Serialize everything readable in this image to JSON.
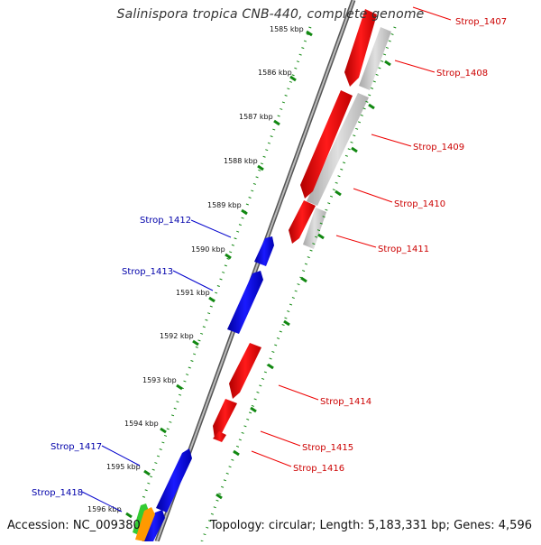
{
  "title": "Salinispora tropica CNB-440, complete genome",
  "footer": {
    "accession": "Accession: NC_009380",
    "topology": "Topology: circular; Length: 5,183,331 bp; Genes: 4,596"
  },
  "colors": {
    "forward": "#0000ee",
    "reverse": "#ff0000",
    "pseudo": "#c8c8c8",
    "ticks": "#118811",
    "backbone": "#777777",
    "green_feature": "#33cc33",
    "orange_feature": "#ff9900"
  },
  "kbp_ticks": [
    "1585 kbp",
    "1586 kbp",
    "1587 kbp",
    "1588 kbp",
    "1589 kbp",
    "1590 kbp",
    "1591 kbp",
    "1592 kbp",
    "1593 kbp",
    "1594 kbp",
    "1595 kbp",
    "1596 kbp"
  ],
  "genes_right": [
    "Strop_1407",
    "Strop_1408",
    "Strop_1409",
    "Strop_1410",
    "Strop_1411",
    "Strop_1414",
    "Strop_1415",
    "Strop_1416"
  ],
  "genes_left": [
    "Strop_1412",
    "Strop_1413",
    "Strop_1417",
    "Strop_1418"
  ]
}
